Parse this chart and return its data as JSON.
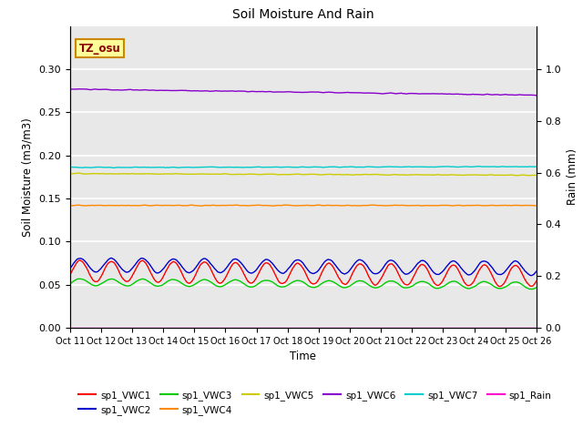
{
  "title": "Soil Moisture And Rain",
  "xlabel": "Time",
  "ylabel_left": "Soil Moisture (m3/m3)",
  "ylabel_right": "Rain (mm)",
  "x_tick_labels": [
    "Oct 11",
    "Oct 12",
    "Oct 13",
    "Oct 14",
    "Oct 15",
    "Oct 16",
    "Oct 17",
    "Oct 18",
    "Oct 19",
    "Oct 20",
    "Oct 21",
    "Oct 22",
    "Oct 23",
    "Oct 24",
    "Oct 25",
    "Oct 26"
  ],
  "ylim_left": [
    0.0,
    0.35
  ],
  "ylim_right": [
    0.0,
    1.1667
  ],
  "y_ticks_left": [
    0.0,
    0.05,
    0.1,
    0.15,
    0.2,
    0.25,
    0.3
  ],
  "y_ticks_right_vals": [
    0.0,
    0.2,
    0.4,
    0.6,
    0.8,
    1.0
  ],
  "y_ticks_right_labels": [
    "0.0",
    "0.2",
    "0.4",
    "0.6",
    "0.8",
    "1.0"
  ],
  "background_color": "#e8e8e8",
  "grid_color": "#ffffff",
  "annotation_text": "TZ_osu",
  "annotation_color": "#8B0000",
  "annotation_bg": "#ffff99",
  "annotation_border": "#cc8800",
  "legend_entries": [
    {
      "label": "sp1_VWC1",
      "color": "#ff0000"
    },
    {
      "label": "sp1_VWC2",
      "color": "#0000cc"
    },
    {
      "label": "sp1_VWC3",
      "color": "#00cc00"
    },
    {
      "label": "sp1_VWC4",
      "color": "#ff8800"
    },
    {
      "label": "sp1_VWC5",
      "color": "#cccc00"
    },
    {
      "label": "sp1_VWC6",
      "color": "#8800cc"
    },
    {
      "label": "sp1_VWC7",
      "color": "#00cccc"
    },
    {
      "label": "sp1_Rain",
      "color": "#ff00cc"
    }
  ]
}
